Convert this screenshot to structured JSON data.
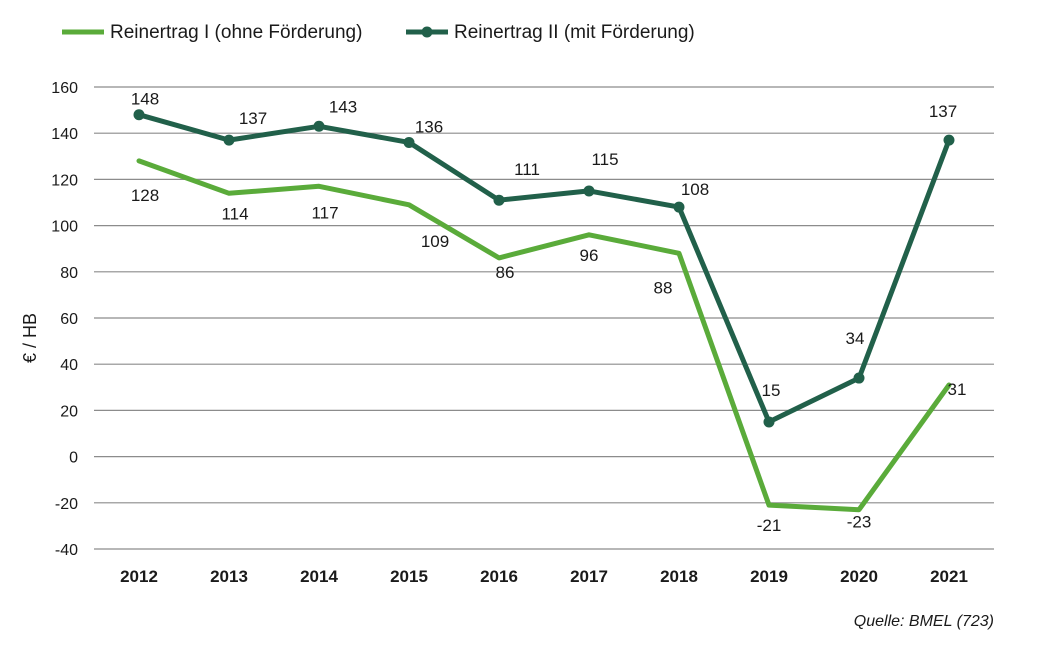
{
  "chart_data": {
    "type": "line",
    "categories": [
      "2012",
      "2013",
      "2014",
      "2015",
      "2016",
      "2017",
      "2018",
      "2019",
      "2020",
      "2021"
    ],
    "series": [
      {
        "name": "Reinertrag I (ohne Förderung)",
        "values": [
          128,
          114,
          117,
          109,
          86,
          96,
          88,
          -21,
          -23,
          31
        ],
        "color": "#5aab3a",
        "markers": false
      },
      {
        "name": "Reinertrag II (mit Förderung)",
        "values": [
          148,
          137,
          143,
          136,
          111,
          115,
          108,
          15,
          34,
          137
        ],
        "color": "#21604a",
        "markers": true
      }
    ],
    "ylabel": "€ / HB",
    "ylim": [
      -40,
      160
    ],
    "yticks": [
      -40,
      -20,
      0,
      20,
      40,
      60,
      80,
      100,
      120,
      140,
      160
    ],
    "grid": true,
    "legend": "top-left",
    "source": "Quelle: BMEL (723)"
  }
}
